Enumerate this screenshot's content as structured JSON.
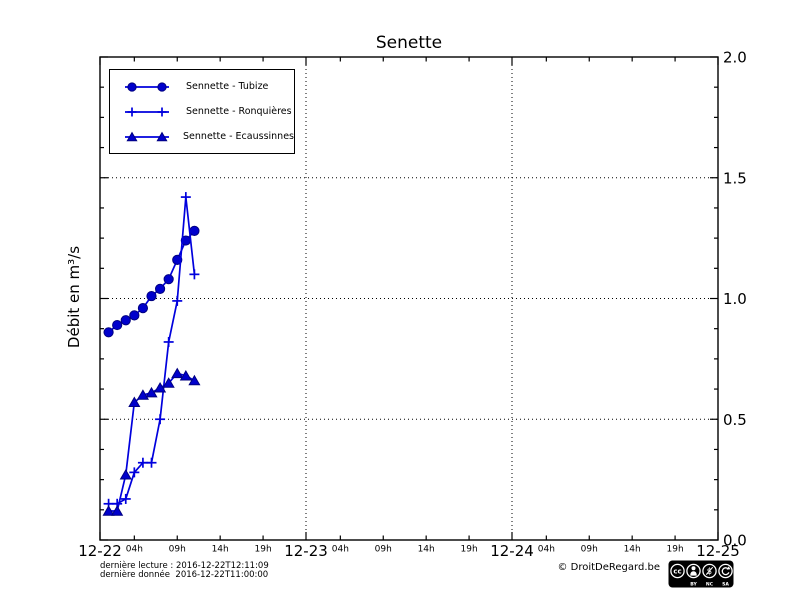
{
  "title": "Senette",
  "ylabel": "Débit en m³/s",
  "colors": {
    "series_line": "#0000dd",
    "series_marker": "#0000cc",
    "series_edge": "#000080",
    "grid": "#000000",
    "background": "#ffffff"
  },
  "chart_data": {
    "type": "line",
    "title": "Senette",
    "xlabel": "",
    "ylabel": "Débit en m³/s",
    "x_unit": "hours since 2016-12-22 00:00",
    "x_range_hours": [
      0,
      72
    ],
    "y_range": [
      0.0,
      2.0
    ],
    "y_minor_step": 0.125,
    "grid": {
      "h_lines": [
        0.5,
        1.0,
        1.5
      ],
      "v_lines_hours": [
        24,
        48
      ]
    },
    "legend_position": "upper-left",
    "x_hours": [
      1,
      2,
      3,
      4,
      5,
      6,
      7,
      8,
      9,
      10,
      11
    ],
    "series": [
      {
        "name": "Sennette - Tubize",
        "slug": "tubize",
        "marker": "circle",
        "values": [
          0.86,
          0.89,
          0.91,
          0.93,
          0.96,
          1.01,
          1.04,
          1.08,
          1.16,
          1.24,
          1.28
        ]
      },
      {
        "name": "Sennette - Ronquières",
        "slug": "ronquieres",
        "marker": "plus",
        "values": [
          0.15,
          0.15,
          0.17,
          0.28,
          0.32,
          0.32,
          0.5,
          0.82,
          0.99,
          1.42,
          1.1
        ]
      },
      {
        "name": "Sennette - Ecaussinnes",
        "slug": "ecaussinnes",
        "marker": "triangle",
        "values": [
          0.12,
          0.12,
          0.27,
          0.57,
          0.6,
          0.61,
          0.63,
          0.65,
          0.69,
          0.68,
          0.66
        ]
      }
    ],
    "x_major_ticks": [
      {
        "hour": 0,
        "label": "12-22"
      },
      {
        "hour": 24,
        "label": "12-23"
      },
      {
        "hour": 48,
        "label": "12-24"
      },
      {
        "hour": 72,
        "label": "12-25"
      }
    ],
    "x_minor_ticks": [
      {
        "hour": 4,
        "label": "04h"
      },
      {
        "hour": 9,
        "label": "09h"
      },
      {
        "hour": 14,
        "label": "14h"
      },
      {
        "hour": 19,
        "label": "19h"
      },
      {
        "hour": 28,
        "label": "04h"
      },
      {
        "hour": 33,
        "label": "09h"
      },
      {
        "hour": 38,
        "label": "14h"
      },
      {
        "hour": 43,
        "label": "19h"
      },
      {
        "hour": 52,
        "label": "04h"
      },
      {
        "hour": 57,
        "label": "09h"
      },
      {
        "hour": 62,
        "label": "14h"
      },
      {
        "hour": 67,
        "label": "19h"
      }
    ],
    "y_major_ticks": [
      {
        "value": 0.0,
        "label": "0.0"
      },
      {
        "value": 0.5,
        "label": "0.5"
      },
      {
        "value": 1.0,
        "label": "1.0"
      },
      {
        "value": 1.5,
        "label": "1.5"
      },
      {
        "value": 2.0,
        "label": "2.0"
      }
    ]
  },
  "footer": {
    "line1": "dernière lecture : 2016-12-22T12:11:09",
    "line2": "dernière donnée  2016-12-22T11:00:00",
    "copyright": "© DroitDeRegard.be",
    "license": {
      "labels": [
        "BY",
        "NC",
        "SA"
      ]
    }
  }
}
